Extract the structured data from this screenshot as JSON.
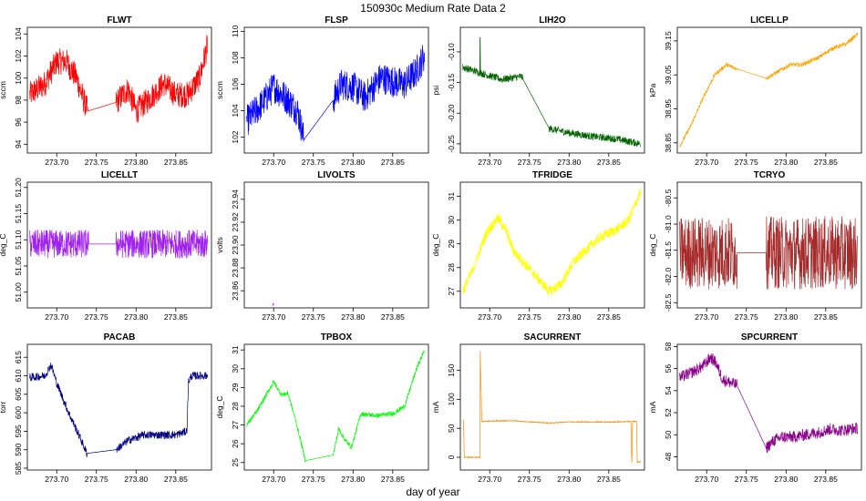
{
  "figure": {
    "title": "150930c   Medium Rate Data 2",
    "xlabel": "day of year"
  },
  "chart_data": [
    {
      "type": "line",
      "title": "FLWT",
      "ylabel": "sccm",
      "color": "#ff0000",
      "xlim": [
        273.663,
        273.895
      ],
      "ylim": [
        93.2,
        104.6
      ],
      "xticks": [
        "273.70",
        "273.75",
        "273.80",
        "273.85"
      ],
      "xtick_values": [
        273.7,
        273.75,
        273.8,
        273.85
      ],
      "yticks": [
        "94",
        "96",
        "98",
        "100",
        "102",
        "104"
      ],
      "ytick_values": [
        94,
        96,
        98,
        100,
        102,
        104
      ],
      "series_x": [
        273.666,
        273.685,
        273.7,
        273.712,
        273.725,
        273.734,
        273.739,
        273.775,
        273.79,
        273.8,
        273.815,
        273.835,
        273.85,
        273.865,
        273.88,
        273.89
      ],
      "series_y": [
        98.5,
        99.5,
        101.5,
        101.5,
        100.0,
        98.0,
        97.0,
        97.8,
        99.0,
        97.0,
        98.0,
        99.5,
        98.5,
        98.5,
        100.0,
        103.0
      ],
      "noise": 2.4,
      "gap": [
        273.739,
        273.775
      ]
    },
    {
      "type": "line",
      "title": "FLSP",
      "ylabel": "sccm",
      "color": "#0000ff",
      "xlim": [
        273.663,
        273.895
      ],
      "ylim": [
        100.8,
        110.3
      ],
      "xticks": [
        "273.70",
        "273.75",
        "273.80",
        "273.85"
      ],
      "xtick_values": [
        273.7,
        273.75,
        273.8,
        273.85
      ],
      "yticks": [
        "102",
        "104",
        "106",
        "108",
        "110"
      ],
      "ytick_values": [
        102,
        104,
        106,
        108,
        110
      ],
      "series_x": [
        273.666,
        273.685,
        273.7,
        273.715,
        273.73,
        273.736,
        273.738,
        273.775,
        273.785,
        273.8,
        273.815,
        273.835,
        273.85,
        273.865,
        273.88,
        273.89
      ],
      "series_y": [
        103.2,
        104.5,
        105.8,
        105.0,
        104.0,
        102.5,
        101.8,
        104.8,
        106.0,
        105.8,
        105.0,
        106.5,
        106.2,
        106.0,
        107.0,
        108.2
      ],
      "noise": 2.4,
      "gap": [
        273.738,
        273.775
      ]
    },
    {
      "type": "line",
      "title": "LIH2O",
      "ylabel": "psi",
      "color": "#006400",
      "xlim": [
        273.663,
        273.895
      ],
      "ylim": [
        -0.265,
        -0.06
      ],
      "xticks": [
        "273.70",
        "273.75",
        "273.80",
        "273.85"
      ],
      "xtick_values": [
        273.7,
        273.75,
        273.8,
        273.85
      ],
      "yticks": [
        "-0.25",
        "-0.20",
        "-0.15",
        "-0.10"
      ],
      "ytick_values": [
        -0.25,
        -0.2,
        -0.15,
        -0.1
      ],
      "series_x": [
        273.666,
        273.69,
        273.715,
        273.74,
        273.775,
        273.8,
        273.83,
        273.86,
        273.89
      ],
      "series_y": [
        -0.125,
        -0.135,
        -0.145,
        -0.14,
        -0.225,
        -0.232,
        -0.238,
        -0.242,
        -0.25
      ],
      "noise": 0.012,
      "gap": [
        273.742,
        273.775
      ],
      "spike_x": 273.688,
      "spike_y": -0.077
    },
    {
      "type": "line",
      "title": "LICELLP",
      "ylabel": "kPa",
      "color": "#ffa500",
      "xlim": [
        273.663,
        273.895
      ],
      "ylim": [
        38.82,
        39.19
      ],
      "xticks": [
        "273.70",
        "273.75",
        "273.80",
        "273.85"
      ],
      "xtick_values": [
        273.7,
        273.75,
        273.8,
        273.85
      ],
      "yticks": [
        "38.85",
        "38.95",
        "39.05",
        "39.15"
      ],
      "ytick_values": [
        38.85,
        38.95,
        39.05,
        39.15
      ],
      "series_x": [
        273.666,
        273.68,
        273.695,
        273.71,
        273.725,
        273.735,
        273.775,
        273.79,
        273.805,
        273.82,
        273.84,
        273.86,
        273.875,
        273.89
      ],
      "series_y": [
        38.84,
        38.9,
        38.98,
        39.05,
        39.08,
        39.07,
        39.04,
        39.06,
        39.08,
        39.08,
        39.1,
        39.13,
        39.14,
        39.17
      ],
      "noise": 0.012,
      "gap": [
        273.738,
        273.775
      ]
    },
    {
      "type": "line",
      "title": "LICELLT",
      "ylabel": "deg_C",
      "color": "#a020f0",
      "xlim": [
        273.663,
        273.895
      ],
      "ylim": [
        50.97,
        51.21
      ],
      "xticks": [
        "273.70",
        "273.75",
        "273.80",
        "273.85"
      ],
      "xtick_values": [
        273.7,
        273.75,
        273.8,
        273.85
      ],
      "yticks": [
        "51.00",
        "51.05",
        "51.10",
        "51.15",
        "51.20"
      ],
      "ytick_values": [
        51.0,
        51.05,
        51.1,
        51.15,
        51.2
      ],
      "series_x": [
        273.666,
        273.74,
        273.775,
        273.89
      ],
      "series_y": [
        51.092,
        51.092,
        51.092,
        51.092
      ],
      "noise": 0.055,
      "gap": [
        273.74,
        273.775
      ]
    },
    {
      "type": "line",
      "title": "LIVOLTS",
      "ylabel": "volts",
      "color": "#ff00ff",
      "xlim": [
        273.663,
        273.895
      ],
      "ylim": [
        23.845,
        23.955
      ],
      "xticks": [
        "273.70",
        "273.75",
        "273.80",
        "273.85"
      ],
      "xtick_values": [
        273.7,
        273.75,
        273.8,
        273.85
      ],
      "yticks": [
        "23.86",
        "23.88",
        "23.90",
        "23.92",
        "23.94"
      ],
      "ytick_values": [
        23.86,
        23.88,
        23.9,
        23.92,
        23.94
      ],
      "series_x": [
        273.699,
        273.7
      ],
      "series_y": [
        23.847,
        23.849
      ],
      "noise": 0,
      "gap": null
    },
    {
      "type": "line",
      "title": "TFRIDGE",
      "ylabel": "deg_C",
      "color": "#ffff00",
      "xlim": [
        273.663,
        273.895
      ],
      "ylim": [
        26.3,
        31.6
      ],
      "xticks": [
        "273.70",
        "273.75",
        "273.80",
        "273.85"
      ],
      "xtick_values": [
        273.7,
        273.75,
        273.8,
        273.85
      ],
      "yticks": [
        "27",
        "28",
        "29",
        "30",
        "31"
      ],
      "ytick_values": [
        27,
        28,
        29,
        30,
        31
      ],
      "series_x": [
        273.666,
        273.68,
        273.695,
        273.71,
        273.72,
        273.73,
        273.775,
        273.79,
        273.805,
        273.82,
        273.84,
        273.86,
        273.875,
        273.89
      ],
      "series_y": [
        27.0,
        28.0,
        29.4,
        30.1,
        29.6,
        28.7,
        27.0,
        27.3,
        28.2,
        28.7,
        29.3,
        29.6,
        30.0,
        31.2
      ],
      "noise": 0.45,
      "gap": null
    },
    {
      "type": "line",
      "title": "TCRYO",
      "ylabel": "deg_C",
      "color": "#a52a2a",
      "xlim": [
        273.663,
        273.895
      ],
      "ylim": [
        -82.6,
        -80.2
      ],
      "xticks": [
        "273.70",
        "273.75",
        "273.80",
        "273.85"
      ],
      "xtick_values": [
        273.7,
        273.75,
        273.8,
        273.85
      ],
      "yticks": [
        "-82.5",
        "-82.0",
        "-81.5",
        "-81.0",
        "-80.5"
      ],
      "ytick_values": [
        -82.5,
        -82.0,
        -81.5,
        -81.0,
        -80.5
      ],
      "series_x": [
        273.666,
        273.738,
        273.775,
        273.89
      ],
      "series_y": [
        -81.55,
        -81.55,
        -81.55,
        -81.55
      ],
      "noise": 1.4,
      "gap": [
        273.738,
        273.775
      ]
    },
    {
      "type": "line",
      "title": "PACAB",
      "ylabel": "torr",
      "color": "#000080",
      "xlim": [
        273.663,
        273.895
      ],
      "ylim": [
        584.5,
        618.5
      ],
      "xticks": [
        "273.70",
        "273.75",
        "273.80",
        "273.85"
      ],
      "xtick_values": [
        273.7,
        273.75,
        273.8,
        273.85
      ],
      "yticks": [
        "585",
        "590",
        "595",
        "600",
        "605",
        "610",
        "615"
      ],
      "ytick_values": [
        585,
        590,
        595,
        600,
        605,
        610,
        615
      ],
      "series_x": [
        273.666,
        273.685,
        273.693,
        273.7,
        273.715,
        273.73,
        273.738,
        273.775,
        273.79,
        273.81,
        273.83,
        273.85,
        273.864,
        273.866,
        273.87,
        273.89
      ],
      "series_y": [
        609.5,
        610.0,
        613.0,
        608.0,
        600.0,
        593.0,
        589.0,
        590.0,
        592.5,
        594.0,
        594.0,
        594.0,
        595.0,
        608.5,
        610.0,
        610.0
      ],
      "noise": 2.2,
      "gap": [
        273.738,
        273.775
      ]
    },
    {
      "type": "line",
      "title": "TPBOX",
      "ylabel": "deg_C",
      "color": "#00ff00",
      "xlim": [
        273.663,
        273.895
      ],
      "ylim": [
        24.6,
        31.3
      ],
      "xticks": [
        "273.70",
        "273.75",
        "273.80",
        "273.85"
      ],
      "xtick_values": [
        273.7,
        273.75,
        273.8,
        273.85
      ],
      "yticks": [
        "25",
        "26",
        "27",
        "28",
        "29",
        "30",
        "31"
      ],
      "ytick_values": [
        25,
        26,
        27,
        28,
        29,
        30,
        31
      ],
      "series_x": [
        273.666,
        273.68,
        273.7,
        273.71,
        273.718,
        273.728,
        273.74,
        273.775,
        273.782,
        273.79,
        273.798,
        273.81,
        273.83,
        273.85,
        273.865,
        273.88,
        273.89
      ],
      "series_y": [
        27.0,
        27.8,
        29.3,
        28.6,
        28.7,
        27.2,
        25.1,
        25.4,
        26.8,
        26.2,
        25.8,
        27.6,
        27.5,
        27.6,
        28.0,
        30.0,
        31.0
      ],
      "noise": 0.25,
      "gap": [
        273.74,
        273.775
      ]
    },
    {
      "type": "line",
      "title": "SACURRENT",
      "ylabel": "mA",
      "color": "#ff8c00",
      "xlim": [
        273.663,
        273.895
      ],
      "ylim": [
        -22,
        195
      ],
      "xticks": [
        "273.70",
        "273.75",
        "273.80",
        "273.85"
      ],
      "xtick_values": [
        273.7,
        273.75,
        273.8,
        273.85
      ],
      "yticks": [
        "0",
        "50",
        "100",
        "150"
      ],
      "ytick_values": [
        0,
        50,
        100,
        150
      ],
      "series_x": [
        273.666,
        273.667,
        273.668,
        273.687,
        273.688,
        273.688,
        273.69,
        273.71,
        273.73,
        273.775,
        273.8,
        273.83,
        273.86,
        273.878,
        273.879,
        273.88,
        273.885,
        273.886,
        273.886,
        273.89
      ],
      "series_y": [
        63,
        63,
        0,
        0,
        0,
        188,
        62,
        63,
        63,
        59,
        61,
        61,
        61,
        62,
        -18,
        62,
        62,
        -18,
        -8,
        -8
      ],
      "noise": 1.5,
      "gap": null
    },
    {
      "type": "line",
      "title": "SPCURRENT",
      "ylabel": "mA",
      "color": "#8b008b",
      "xlim": [
        273.663,
        273.895
      ],
      "ylim": [
        46.8,
        58.2
      ],
      "xticks": [
        "273.70",
        "273.75",
        "273.80",
        "273.85"
      ],
      "xtick_values": [
        273.7,
        273.75,
        273.8,
        273.85
      ],
      "yticks": [
        "48",
        "50",
        "52",
        "54",
        "56",
        "58"
      ],
      "ytick_values": [
        48,
        50,
        52,
        54,
        56,
        58
      ],
      "series_x": [
        273.666,
        273.68,
        273.695,
        273.705,
        273.712,
        273.72,
        273.738,
        273.775,
        273.785,
        273.795,
        273.81,
        273.825,
        273.84,
        273.855,
        273.87,
        273.89
      ],
      "series_y": [
        55.2,
        55.6,
        56.2,
        57.0,
        56.5,
        55.0,
        54.5,
        48.8,
        49.5,
        49.8,
        49.8,
        50.0,
        50.2,
        50.5,
        50.4,
        50.6
      ],
      "noise": 1.1,
      "gap": [
        273.738,
        273.775
      ]
    }
  ]
}
